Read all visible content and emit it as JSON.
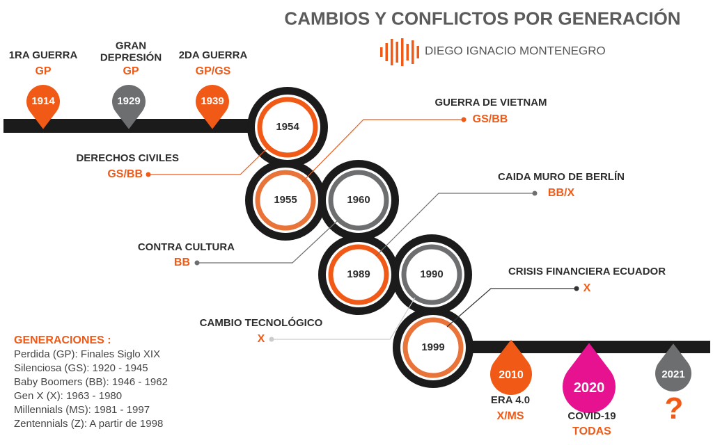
{
  "header": {
    "title": "CAMBIOS Y CONFLICTOS POR GENERACIÓN",
    "author": "DIEGO IGNACIO MONTENEGRO"
  },
  "events": [
    {
      "year": "1914",
      "label": "1RA GUERRA",
      "gen": "GP"
    },
    {
      "year": "1929",
      "label": "GRAN DEPRESIÓN",
      "gen": "GP"
    },
    {
      "year": "1939",
      "label": "2DA GUERRA",
      "gen": "GP/GS"
    },
    {
      "year": "1954",
      "label": "DERECHOS CIVILES",
      "gen": "GS/BB"
    },
    {
      "year": "1955",
      "label": "GUERRA DE VIETNAM",
      "gen": "GS/BB"
    },
    {
      "year": "1960",
      "label": "CONTRA CULTURA",
      "gen": "BB"
    },
    {
      "year": "1989",
      "label": "CAIDA MURO DE BERLÍN",
      "gen": "BB/X"
    },
    {
      "year": "1990",
      "label": "CAMBIO TECNOLÓGICO",
      "gen": "X"
    },
    {
      "year": "1999",
      "label": "CRISIS FINANCIERA ECUADOR",
      "gen": "X"
    },
    {
      "year": "2010",
      "label": "ERA 4.0",
      "gen": "X/MS"
    },
    {
      "year": "2020",
      "label": "COVID-19",
      "gen": "TODAS"
    },
    {
      "year": "2021",
      "label": "?"
    }
  ],
  "legend": {
    "title": "GENERACIONES :",
    "items": [
      "Perdida (GP): Finales Siglo XIX",
      "Silenciosa (GS): 1920 - 1945",
      "Baby Boomers (BB): 1946 - 1962",
      "Gen X (X): 1963 - 1980",
      "Millennials (MS): 1981 - 1997",
      "Zentennials (Z): A partir de 1998"
    ]
  }
}
